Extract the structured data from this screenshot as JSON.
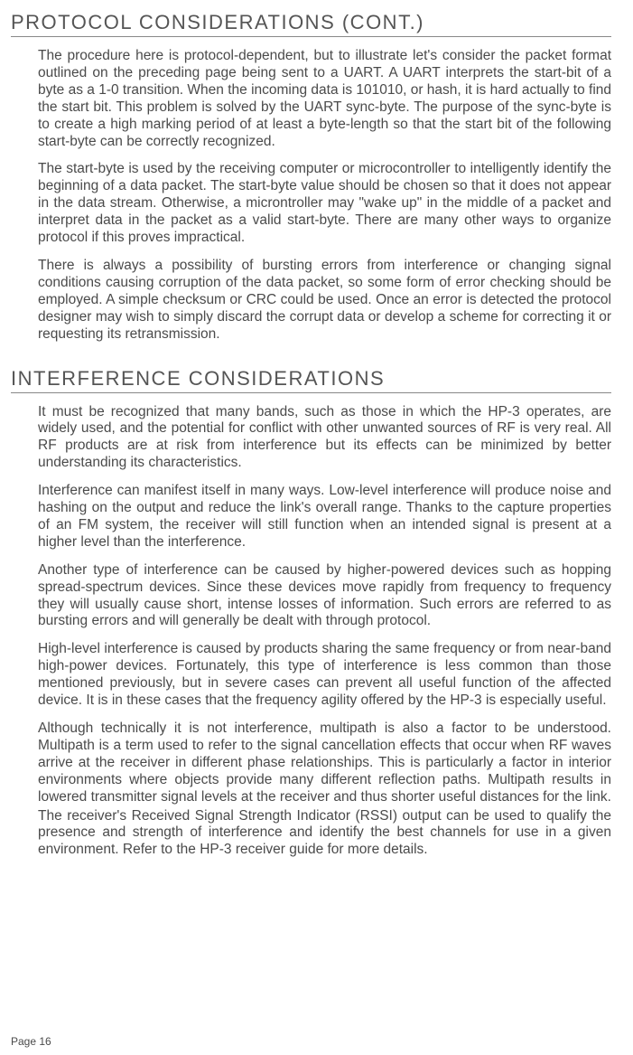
{
  "section1": {
    "heading": "PROTOCOL CONSIDERATIONS (CONT.)",
    "paragraphs": [
      "The procedure here is protocol-dependent, but to illustrate let's consider the packet format outlined on the preceding page being sent to a UART. A UART interprets the start-bit of a byte as a 1-0 transition. When the incoming data is 101010, or hash, it is hard actually to find the start bit. This problem is solved by the UART sync-byte. The purpose of the sync-byte is to create a high marking period of at least a byte-length so that the start bit of the following start-byte can be correctly recognized.",
      "The start-byte is used by the receiving computer or microcontroller to intelligently identify the beginning of a data packet. The start-byte value should be chosen so that it does not appear in the data stream. Otherwise, a microntroller may \"wake up\" in the middle of a packet and interpret data in the packet as a valid start-byte. There are many other ways to organize protocol if this proves impractical.",
      "There is always a possibility of bursting errors from interference or changing signal conditions causing corruption of the data packet, so some form of error checking should be employed. A simple checksum or CRC could be used. Once an error is detected the protocol designer may wish to simply discard the corrupt data or develop a scheme for correcting it or requesting its retransmission."
    ]
  },
  "section2": {
    "heading": "INTERFERENCE CONSIDERATIONS",
    "paragraphs": [
      "It must be recognized that many bands, such as those in which the HP-3 operates,  are widely used, and the potential for conflict with other unwanted sources of RF is very real. All RF products are at risk from interference but its effects can be minimized by better understanding its characteristics.",
      "Interference can manifest itself in many ways. Low-level interference will produce noise and hashing on the output and reduce the link's overall range. Thanks to the capture properties of an FM system, the receiver will still function when an intended signal is present at a higher level than the interference.",
      "Another type of interference can be caused by higher-powered devices such as hopping spread-spectrum devices. Since these devices move rapidly from frequency to frequency they will usually cause short, intense losses of information. Such errors are referred to as bursting errors and will generally be dealt with through protocol.",
      "High-level interference is caused by products sharing the same frequency or from near-band high-power devices. Fortunately, this type of interference is less common than those mentioned previously, but in severe cases can prevent all useful function of the affected device. It is in these cases that the frequency agility offered by the HP-3 is especially useful.",
      "Although technically it is not interference, multipath is also a factor to be understood. Multipath is a term used to refer to the signal cancellation effects that occur when RF waves arrive at the receiver in different phase relationships. This is particularly a factor in interior environments where objects provide many different reflection paths. Multipath results in lowered transmitter signal levels at the receiver and thus shorter useful distances for the link.",
      "The receiver's Received Signal Strength Indicator (RSSI) output can be used to qualify the presence and strength of interference and identify the best channels for use in a given environment. Refer to the HP-3 receiver guide for more details."
    ]
  },
  "pageNumber": "Page 16"
}
